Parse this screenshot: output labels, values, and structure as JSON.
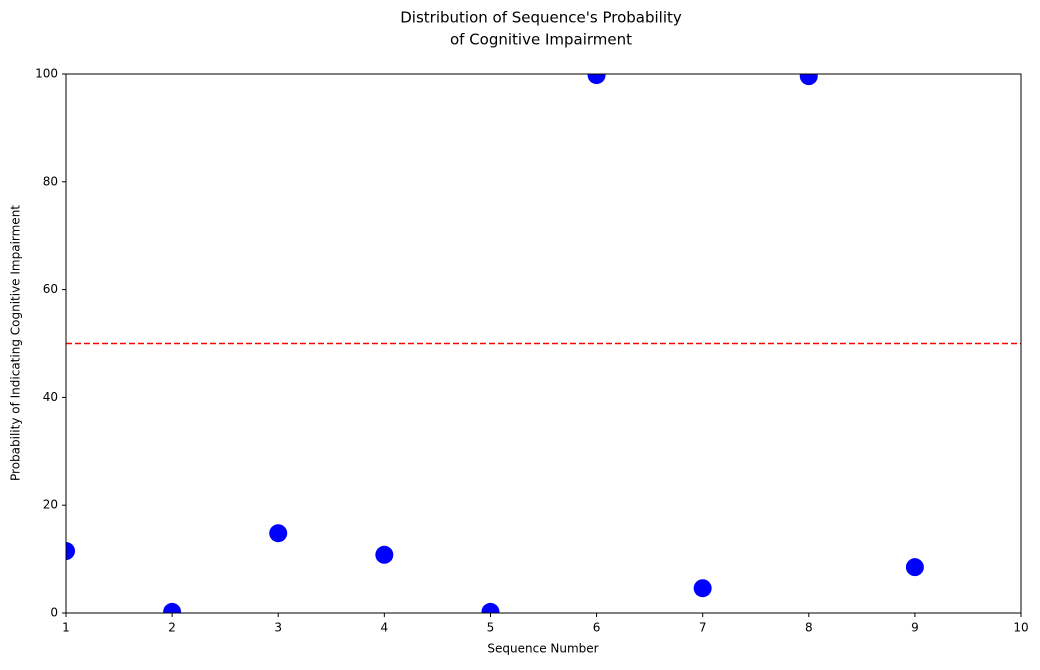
{
  "chart_data": {
    "type": "scatter",
    "title": [
      "Distribution of Sequence's Probability",
      "of Cognitive Impairment"
    ],
    "xlabel": "Sequence Number",
    "ylabel": "Probability of Indicating Cognitive Impairment",
    "x": [
      1,
      2,
      3,
      4,
      5,
      6,
      7,
      8,
      9
    ],
    "values": [
      11.5,
      0.2,
      14.8,
      10.8,
      0.2,
      99.8,
      4.6,
      99.6,
      8.5
    ],
    "color": "#0000ff",
    "xlim": [
      1,
      10
    ],
    "xticks": [
      1,
      2,
      3,
      4,
      5,
      6,
      7,
      8,
      9,
      10
    ],
    "ylim": [
      0,
      100
    ],
    "yticks": [
      0,
      20,
      40,
      60,
      80,
      100
    ],
    "hline": {
      "value": 50,
      "color": "#ff0000",
      "style": "dashed"
    },
    "grid": false
  }
}
